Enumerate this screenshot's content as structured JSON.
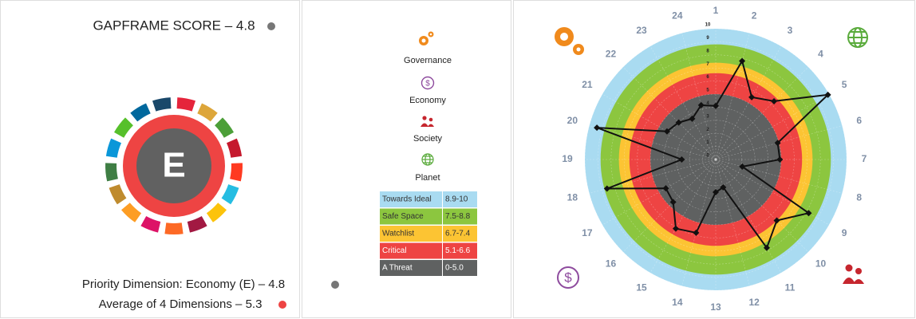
{
  "score_panel": {
    "title": "GAPFRAME SCORE – 4.8",
    "badge": "E",
    "priority": "Priority Dimension: Economy (E) – 4.8",
    "average": "Average of 4 Dimensions – 5.3"
  },
  "dimensions": [
    "Governance",
    "Economy",
    "Society",
    "Planet"
  ],
  "chart_data": {
    "type": "radar",
    "categories": [
      "1",
      "2",
      "3",
      "4",
      "5",
      "6",
      "7",
      "8",
      "9",
      "10",
      "11",
      "12",
      "13",
      "14",
      "15",
      "16",
      "17",
      "18",
      "19",
      "20",
      "21",
      "22",
      "23",
      "24"
    ],
    "values": [
      4.1,
      7.8,
      5.5,
      6.3,
      9.9,
      4.9,
      4.9,
      2.1,
      8.2,
      6.6,
      7.8,
      2.2,
      2.5,
      5.8,
      6.1,
      4.6,
      4.4,
      8.6,
      2.6,
      9.4,
      4.3,
      4.0,
      3.6,
      4.3
    ],
    "color": "#111111",
    "rlim": [
      0,
      10
    ],
    "rticks": [
      0,
      1,
      2,
      3,
      4,
      5,
      6,
      7,
      8,
      9,
      10
    ],
    "grid": true,
    "bands": [
      {
        "name": "Towards Ideal",
        "range": "8.9-10",
        "max": 10,
        "color": "#a9dbf1"
      },
      {
        "name": "Safe Space",
        "range": "7.5-8.8",
        "max": 8.8,
        "color": "#8cc63f"
      },
      {
        "name": "Watchlist",
        "range": "6.7-7.4",
        "max": 7.4,
        "color": "#fcc433"
      },
      {
        "name": "Critical",
        "range": "5.1-6.6",
        "max": 6.6,
        "color": "#ee4443"
      },
      {
        "name": "A Threat",
        "range": "0-5.0",
        "max": 5.0,
        "color": "#5f6161"
      }
    ]
  }
}
